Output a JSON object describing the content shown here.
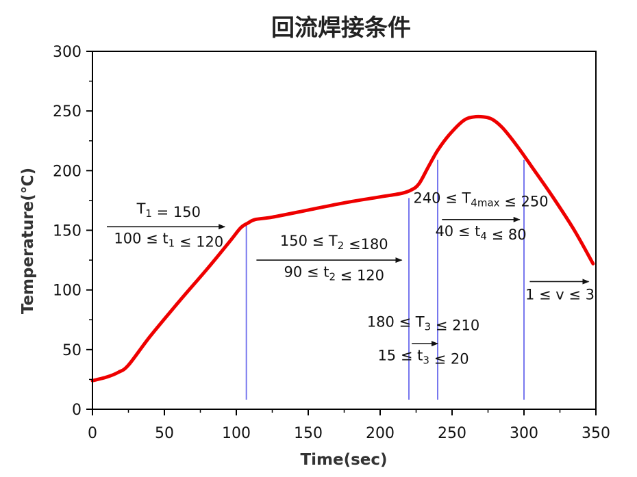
{
  "chart_data": {
    "type": "line",
    "title": "回流焊接条件",
    "xlabel": "Time(sec)",
    "ylabel": "Temperature(℃)",
    "xlim": [
      0,
      350
    ],
    "ylim": [
      0,
      300
    ],
    "x_ticks": [
      0,
      50,
      100,
      150,
      200,
      250,
      300,
      350
    ],
    "y_ticks": [
      0,
      50,
      100,
      150,
      200,
      250,
      300
    ],
    "series": [
      {
        "color": "#ee0000",
        "x": [
          0,
          10,
          18,
          25,
          40,
          60,
          80,
          95,
          103,
          108,
          113,
          125,
          150,
          175,
          200,
          215,
          222,
          227,
          233,
          240,
          248,
          258,
          265,
          272,
          278,
          285,
          295,
          305,
          320,
          335,
          348
        ],
        "y": [
          24,
          27,
          31,
          37,
          61,
          90,
          118,
          140,
          152,
          156,
          159,
          161,
          167,
          173,
          178,
          181,
          184,
          189,
          202,
          217,
          230,
          242,
          245,
          245,
          243,
          236,
          221,
          204,
          178,
          150,
          122
        ]
      }
    ],
    "vlines": [
      {
        "x": 107,
        "y0": 8,
        "y1": 156,
        "color": "#7777ee"
      },
      {
        "x": 220,
        "y0": 8,
        "y1": 177,
        "color": "#7777ee"
      },
      {
        "x": 240,
        "y0": 8,
        "y1": 209,
        "color": "#7777ee"
      },
      {
        "x": 300,
        "y0": 8,
        "y1": 209,
        "color": "#7777ee"
      }
    ],
    "arrows": [
      {
        "x0": 10,
        "x1": 92,
        "y": 153
      },
      {
        "x0": 114,
        "x1": 215,
        "y": 125
      },
      {
        "x0": 222,
        "x1": 240,
        "y": 55
      },
      {
        "x0": 243,
        "x1": 297,
        "y": 159
      },
      {
        "x0": 304,
        "x1": 345,
        "y": 107
      }
    ]
  },
  "annotations": [
    {
      "parts": [
        {
          "t": "T"
        },
        {
          "t": "1",
          "sub": true
        },
        {
          "t": " = 150"
        }
      ],
      "x": 53,
      "y": 164
    },
    {
      "parts": [
        {
          "t": "100 ≤ t"
        },
        {
          "t": "1",
          "sub": true
        },
        {
          "t": " ≤ 120"
        }
      ],
      "x": 53,
      "y": 139
    },
    {
      "parts": [
        {
          "t": "150 ≤ T"
        },
        {
          "t": "2",
          "sub": true
        },
        {
          "t": " ≤180"
        }
      ],
      "x": 168,
      "y": 137
    },
    {
      "parts": [
        {
          "t": "90 ≤ t"
        },
        {
          "t": "2",
          "sub": true
        },
        {
          "t": " ≤ 120"
        }
      ],
      "x": 168,
      "y": 111
    },
    {
      "parts": [
        {
          "t": "180 ≤ T"
        },
        {
          "t": "3",
          "sub": true
        },
        {
          "t": " ≤ 210"
        }
      ],
      "x": 230,
      "y": 69
    },
    {
      "parts": [
        {
          "t": "15 ≤ t"
        },
        {
          "t": "3",
          "sub": true
        },
        {
          "t": " ≤ 20"
        }
      ],
      "x": 230,
      "y": 41
    },
    {
      "parts": [
        {
          "t": "240 ≤ T"
        },
        {
          "t": "4max",
          "sub": true
        },
        {
          "t": " ≤ 250"
        }
      ],
      "x": 270,
      "y": 173
    },
    {
      "parts": [
        {
          "t": "40 ≤ t"
        },
        {
          "t": "4",
          "sub": true
        },
        {
          "t": " ≤ 80"
        }
      ],
      "x": 270,
      "y": 145
    },
    {
      "parts": [
        {
          "t": "1 ≤ v ≤ 3"
        }
      ],
      "x": 325,
      "y": 92
    }
  ]
}
